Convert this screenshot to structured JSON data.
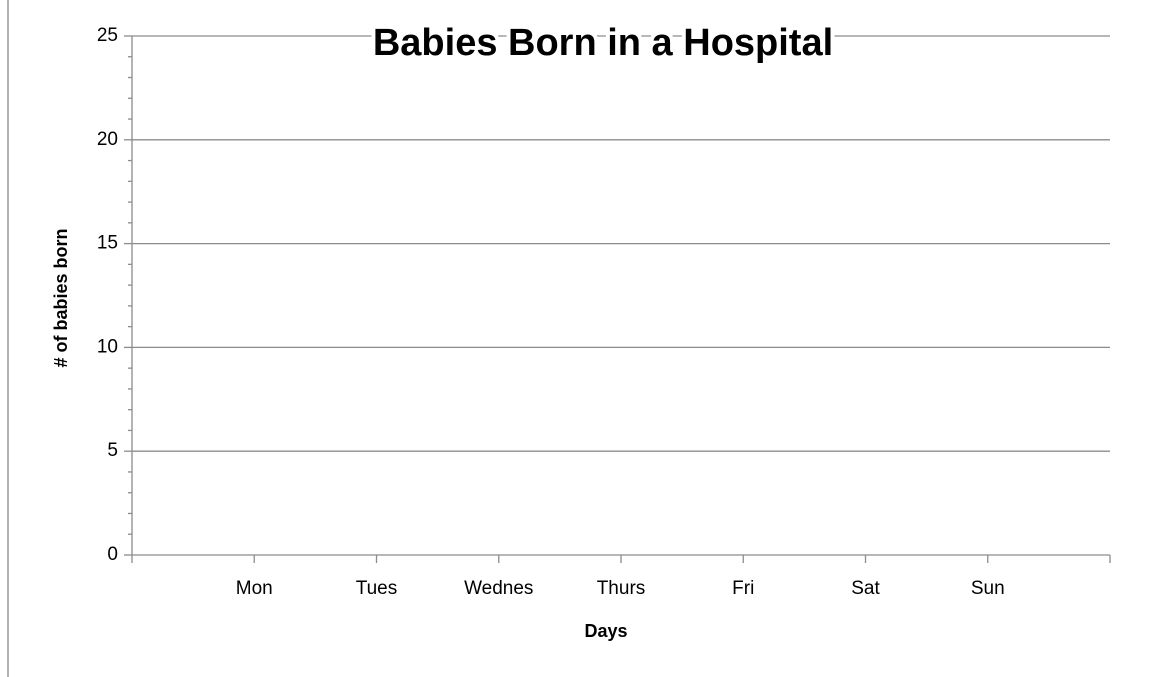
{
  "chart_data": {
    "type": "bar",
    "title": "Babies Born in a Hospital",
    "categories": [
      "Mon",
      "Tues",
      "Wednes",
      "Thurs",
      "Fri",
      "Sat",
      "Sun"
    ],
    "x_label": "Days",
    "y_label": "# of babies born",
    "ylim": [
      0,
      25
    ],
    "yticks": [
      0,
      5,
      10,
      15,
      20,
      25
    ],
    "grid": true
  }
}
